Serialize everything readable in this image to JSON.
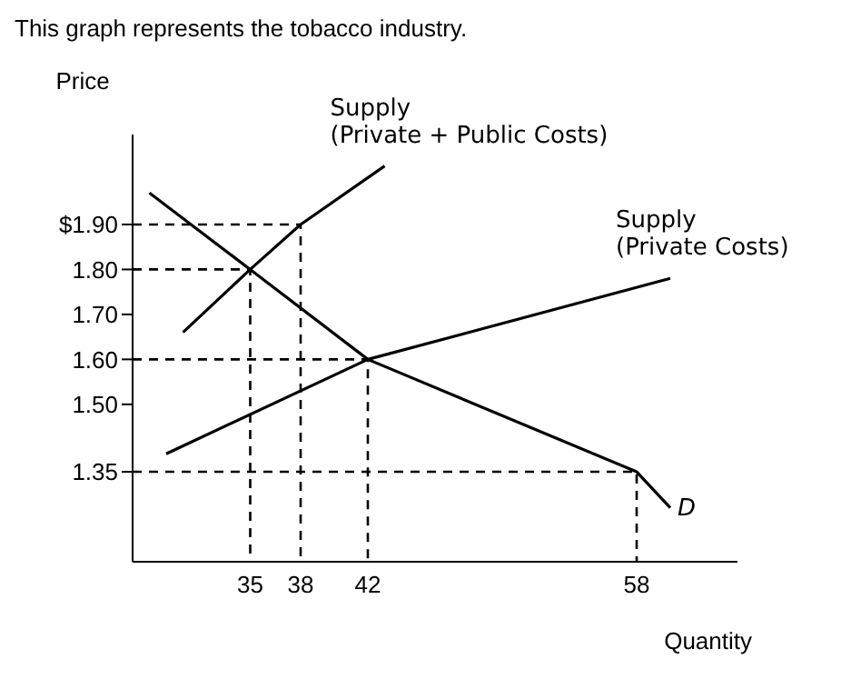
{
  "chart_data": {
    "type": "line",
    "title": "This graph represents the tobacco industry.",
    "xlabel": "Quantity",
    "ylabel": "Price",
    "xlim": [
      28,
      64
    ],
    "xticks": [
      35,
      38,
      42,
      58
    ],
    "ylim": [
      1.15,
      2.1
    ],
    "yticks": [
      1.35,
      {
        "value": 1.5,
        "label": "1.50"
      },
      {
        "value": 1.6,
        "label": "1.60"
      },
      {
        "value": 1.7,
        "label": "1.70"
      },
      {
        "value": 1.8,
        "label": "1.80"
      },
      {
        "value": 1.9,
        "label": "$1.90"
      }
    ],
    "marker": "none",
    "series": [
      {
        "name": "Supply (Private + Public Costs)",
        "color": "#000000",
        "x": [
          31,
          35,
          38,
          43
        ],
        "values": [
          1.66,
          1.8,
          1.9,
          2.03
        ]
      },
      {
        "name": "Supply (Private Costs)",
        "color": "#000000",
        "x": [
          30,
          42,
          60
        ],
        "values": [
          1.39,
          1.6,
          1.78
        ]
      },
      {
        "name": "D",
        "color": "#000000",
        "x": [
          29,
          35,
          42,
          58,
          60
        ],
        "values": [
          1.97,
          1.8,
          1.6,
          1.35,
          1.27
        ]
      },
      {
        "color": "#000000",
        "line_style": "dashed",
        "x": [
          28,
          35,
          35
        ],
        "values": [
          1.8,
          1.8,
          1.15
        ]
      },
      {
        "color": "#000000",
        "line_style": "dashed",
        "x": [
          28,
          38,
          38
        ],
        "values": [
          1.9,
          1.9,
          1.15
        ]
      },
      {
        "color": "#000000",
        "line_style": "dashed",
        "x": [
          28,
          42,
          42
        ],
        "values": [
          1.6,
          1.6,
          1.15
        ]
      },
      {
        "color": "#000000",
        "line_style": "dashed",
        "x": [
          28,
          58,
          58
        ],
        "values": [
          1.35,
          1.35,
          1.15
        ]
      }
    ]
  }
}
